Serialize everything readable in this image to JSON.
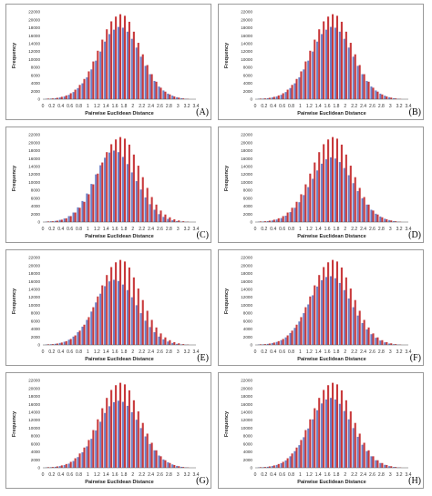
{
  "chart_data": [
    {
      "panel": "A",
      "type": "bar",
      "xlabel": "Pairwise Euclidean Distance",
      "ylabel": "Frequency",
      "yticks": [
        0,
        2000,
        4000,
        6000,
        8000,
        10000,
        12000,
        14000,
        16000,
        18000,
        20000,
        22000
      ],
      "xticks": [
        "0",
        "0.2",
        "0.4",
        "0.6",
        "0.8",
        "1",
        "1.2",
        "1.4",
        "1.6",
        "1.8",
        "2",
        "2.2",
        "2.4",
        "2.6",
        "2.8",
        "3",
        "3.2",
        "3.4"
      ],
      "ylim": [
        0,
        22000
      ],
      "xlim": [
        0,
        3.4
      ],
      "bin_width": 0.1,
      "x": [
        0.1,
        0.2,
        0.3,
        0.4,
        0.5,
        0.6,
        0.7,
        0.8,
        0.9,
        1.0,
        1.1,
        1.2,
        1.3,
        1.4,
        1.5,
        1.6,
        1.7,
        1.8,
        1.9,
        2.0,
        2.1,
        2.2,
        2.3,
        2.4,
        2.5,
        2.6,
        2.7,
        2.8,
        2.9,
        3.0,
        3.1,
        3.2
      ],
      "series": [
        {
          "values": [
            100,
            150,
            250,
            450,
            700,
            1100,
            1800,
            2800,
            4000,
            5500,
            7500,
            9700,
            12000,
            14500,
            16400,
            17500,
            18200,
            18000,
            17000,
            15200,
            13000,
            10700,
            8400,
            6300,
            4600,
            3200,
            2200,
            1400,
            900,
            500,
            250,
            100
          ]
        },
        {
          "values": [
            150,
            200,
            350,
            600,
            950,
            1500,
            2400,
            3600,
            5100,
            7000,
            9500,
            12200,
            15000,
            17600,
            19600,
            20800,
            21400,
            21000,
            19500,
            17000,
            14200,
            11300,
            8600,
            6300,
            4400,
            2900,
            1900,
            1200,
            700,
            400,
            200,
            80
          ]
        }
      ]
    },
    {
      "panel": "B",
      "type": "bar",
      "xlabel": "Pairwise Euclidean Distance",
      "ylabel": "Frequency",
      "yticks": [
        0,
        2000,
        4000,
        6000,
        8000,
        10000,
        12000,
        14000,
        16000,
        18000,
        20000,
        22000
      ],
      "xticks": [
        "0",
        "0.2",
        "0.4",
        "0.6",
        "0.8",
        "1",
        "1.2",
        "1.4",
        "1.6",
        "1.8",
        "2",
        "2.2",
        "2.4",
        "2.6",
        "2.8",
        "3",
        "3.2",
        "3.4"
      ],
      "ylim": [
        0,
        22000
      ],
      "xlim": [
        0,
        3.4
      ],
      "bin_width": 0.1,
      "x": [
        0.1,
        0.2,
        0.3,
        0.4,
        0.5,
        0.6,
        0.7,
        0.8,
        0.9,
        1.0,
        1.1,
        1.2,
        1.3,
        1.4,
        1.5,
        1.6,
        1.7,
        1.8,
        1.9,
        2.0,
        2.1,
        2.2,
        2.3,
        2.4,
        2.5,
        2.6,
        2.7,
        2.8,
        2.9,
        3.0,
        3.1,
        3.2
      ],
      "series": [
        {
          "values": [
            100,
            150,
            250,
            450,
            700,
            1100,
            1800,
            2800,
            4000,
            5500,
            7500,
            9700,
            12000,
            14500,
            16400,
            17500,
            18200,
            18000,
            17000,
            15200,
            13000,
            10700,
            8400,
            6300,
            4600,
            3200,
            2200,
            1400,
            900,
            500,
            250,
            100
          ]
        },
        {
          "values": [
            150,
            200,
            350,
            600,
            950,
            1500,
            2400,
            3600,
            5100,
            7000,
            9500,
            12200,
            15000,
            17600,
            19600,
            20800,
            21400,
            21000,
            19500,
            17000,
            14200,
            11300,
            8600,
            6300,
            4400,
            2900,
            1900,
            1200,
            700,
            400,
            200,
            80
          ]
        }
      ]
    },
    {
      "panel": "C",
      "type": "bar",
      "xlabel": "Pairwise Euclidean Distance",
      "ylabel": "Frequency",
      "yticks": [
        0,
        2000,
        4000,
        6000,
        8000,
        10000,
        12000,
        14000,
        16000,
        18000,
        20000,
        22000
      ],
      "xticks": [
        "0",
        "0.2",
        "0.4",
        "0.6",
        "0.8",
        "1",
        "1.2",
        "1.4",
        "1.6",
        "1.8",
        "2",
        "2.2",
        "2.4",
        "2.6",
        "2.8",
        "3",
        "3.2",
        "3.4"
      ],
      "ylim": [
        0,
        22000
      ],
      "xlim": [
        0,
        3.4
      ],
      "bin_width": 0.1,
      "x": [
        0.1,
        0.2,
        0.3,
        0.4,
        0.5,
        0.6,
        0.7,
        0.8,
        0.9,
        1.0,
        1.1,
        1.2,
        1.3,
        1.4,
        1.5,
        1.6,
        1.7,
        1.8,
        1.9,
        2.0,
        2.1,
        2.2,
        2.3,
        2.4,
        2.5,
        2.6,
        2.7,
        2.8,
        2.9,
        3.0,
        3.1,
        3.2
      ],
      "series": [
        {
          "values": [
            100,
            180,
            300,
            550,
            900,
            1500,
            2400,
            3700,
            5300,
            7200,
            9600,
            12000,
            14300,
            16200,
            17500,
            18000,
            17600,
            16400,
            14600,
            12500,
            10300,
            8200,
            6200,
            4500,
            3100,
            2000,
            1300,
            800,
            450,
            250,
            120,
            60
          ]
        },
        {
          "values": [
            150,
            200,
            350,
            600,
            950,
            1500,
            2400,
            3600,
            5100,
            7000,
            9500,
            12200,
            15000,
            17600,
            19600,
            20800,
            21400,
            21000,
            19500,
            17000,
            14200,
            11300,
            8600,
            6300,
            4400,
            2900,
            1900,
            1200,
            700,
            400,
            200,
            80
          ]
        }
      ]
    },
    {
      "panel": "D",
      "type": "bar",
      "xlabel": "Pairwise Euclidean Distance",
      "ylabel": "Frequency",
      "yticks": [
        0,
        2000,
        4000,
        6000,
        8000,
        10000,
        12000,
        14000,
        16000,
        18000,
        20000,
        22000
      ],
      "xticks": [
        "0",
        "0.2",
        "0.4",
        "0.6",
        "0.8",
        "1",
        "1.2",
        "1.4",
        "1.6",
        "1.8",
        "2",
        "2.2",
        "2.4",
        "2.6",
        "2.8",
        "3",
        "3.2",
        "3.4"
      ],
      "ylim": [
        0,
        22000
      ],
      "xlim": [
        0,
        3.4
      ],
      "bin_width": 0.1,
      "x": [
        0.1,
        0.2,
        0.3,
        0.4,
        0.5,
        0.6,
        0.7,
        0.8,
        0.9,
        1.0,
        1.1,
        1.2,
        1.3,
        1.4,
        1.5,
        1.6,
        1.7,
        1.8,
        1.9,
        2.0,
        2.1,
        2.2,
        2.3,
        2.4,
        2.5,
        2.6,
        2.7,
        2.8,
        2.9,
        3.0,
        3.1,
        3.2
      ],
      "series": [
        {
          "values": [
            80,
            130,
            220,
            400,
            650,
            1000,
            1600,
            2500,
            3600,
            5000,
            6800,
            8800,
            10900,
            13000,
            14700,
            15800,
            16300,
            16000,
            15100,
            13600,
            11800,
            9800,
            7800,
            6000,
            4400,
            3100,
            2100,
            1400,
            850,
            500,
            250,
            100
          ]
        },
        {
          "values": [
            150,
            200,
            350,
            600,
            950,
            1500,
            2400,
            3600,
            5100,
            7000,
            9500,
            12200,
            15000,
            17600,
            19600,
            20800,
            21400,
            21000,
            19500,
            17000,
            14200,
            11300,
            8600,
            6300,
            4400,
            2900,
            1900,
            1200,
            700,
            400,
            200,
            80
          ]
        }
      ]
    },
    {
      "panel": "E",
      "type": "bar",
      "xlabel": "Pairwise Euclidean Distance",
      "ylabel": "Frequency",
      "yticks": [
        0,
        2000,
        4000,
        6000,
        8000,
        10000,
        12000,
        14000,
        16000,
        18000,
        20000,
        22000
      ],
      "xticks": [
        "0",
        "0.2",
        "0.4",
        "0.6",
        "0.8",
        "1",
        "1.2",
        "1.4",
        "1.6",
        "1.8",
        "2",
        "2.2",
        "2.4",
        "2.6",
        "2.8",
        "3",
        "3.2",
        "3.4"
      ],
      "ylim": [
        0,
        22000
      ],
      "xlim": [
        0,
        3.4
      ],
      "bin_width": 0.1,
      "x": [
        0.1,
        0.2,
        0.3,
        0.4,
        0.5,
        0.6,
        0.7,
        0.8,
        0.9,
        1.0,
        1.1,
        1.2,
        1.3,
        1.4,
        1.5,
        1.6,
        1.7,
        1.8,
        1.9,
        2.0,
        2.1,
        2.2,
        2.3,
        2.4,
        2.5,
        2.6,
        2.7,
        2.8,
        2.9,
        3.0,
        3.1,
        3.2
      ],
      "series": [
        {
          "values": [
            100,
            160,
            280,
            500,
            800,
            1300,
            2100,
            3200,
            4600,
            6300,
            8400,
            10700,
            12900,
            14800,
            16000,
            16400,
            16100,
            15200,
            13800,
            12000,
            10000,
            8000,
            6100,
            4500,
            3200,
            2100,
            1400,
            850,
            500,
            270,
            130,
            60
          ]
        },
        {
          "values": [
            150,
            200,
            350,
            600,
            950,
            1500,
            2400,
            3600,
            5100,
            7000,
            9500,
            12200,
            15000,
            17600,
            19600,
            20800,
            21400,
            21000,
            19500,
            17000,
            14200,
            11300,
            8600,
            6300,
            4400,
            2900,
            1900,
            1200,
            700,
            400,
            200,
            80
          ]
        }
      ]
    },
    {
      "panel": "F",
      "type": "bar",
      "xlabel": "Pairwise Euclidean Distance",
      "ylabel": "Frequency",
      "yticks": [
        0,
        2000,
        4000,
        6000,
        8000,
        10000,
        12000,
        14000,
        16000,
        18000,
        20000,
        22000
      ],
      "xticks": [
        "0",
        "0.2",
        "0.4",
        "0.6",
        "0.8",
        "1",
        "1.2",
        "1.4",
        "1.6",
        "1.8",
        "2",
        "2.2",
        "2.4",
        "2.6",
        "2.8",
        "3",
        "3.2",
        "3.4"
      ],
      "ylim": [
        0,
        22000
      ],
      "xlim": [
        0,
        3.4
      ],
      "bin_width": 0.1,
      "x": [
        0.1,
        0.2,
        0.3,
        0.4,
        0.5,
        0.6,
        0.7,
        0.8,
        0.9,
        1.0,
        1.1,
        1.2,
        1.3,
        1.4,
        1.5,
        1.6,
        1.7,
        1.8,
        1.9,
        2.0,
        2.1,
        2.2,
        2.3,
        2.4,
        2.5,
        2.6,
        2.7,
        2.8,
        2.9,
        3.0,
        3.1,
        3.2
      ],
      "series": [
        {
          "values": [
            100,
            150,
            260,
            470,
            750,
            1200,
            1900,
            3000,
            4300,
            5900,
            8000,
            10200,
            12500,
            14700,
            16300,
            17100,
            17300,
            16800,
            15600,
            13800,
            11700,
            9500,
            7400,
            5500,
            3900,
            2700,
            1800,
            1100,
            650,
            350,
            180,
            80
          ]
        },
        {
          "values": [
            150,
            200,
            350,
            600,
            950,
            1500,
            2400,
            3600,
            5100,
            7000,
            9500,
            12200,
            15000,
            17600,
            19600,
            20800,
            21400,
            21000,
            19500,
            17000,
            14200,
            11300,
            8600,
            6300,
            4400,
            2900,
            1900,
            1200,
            700,
            400,
            200,
            80
          ]
        }
      ]
    },
    {
      "panel": "G",
      "type": "bar",
      "xlabel": "Pairwise Euclidean Distance",
      "ylabel": "Frequency",
      "yticks": [
        0,
        2000,
        4000,
        6000,
        8000,
        10000,
        12000,
        14000,
        16000,
        18000,
        20000,
        22000
      ],
      "xticks": [
        "0",
        "0.2",
        "0.4",
        "0.6",
        "0.8",
        "1",
        "1.2",
        "1.4",
        "1.6",
        "1.8",
        "2",
        "2.2",
        "2.4",
        "2.6",
        "2.8",
        "3",
        "3.2",
        "3.4"
      ],
      "ylim": [
        0,
        22000
      ],
      "xlim": [
        0,
        3.4
      ],
      "bin_width": 0.1,
      "x": [
        0.1,
        0.2,
        0.3,
        0.4,
        0.5,
        0.6,
        0.7,
        0.8,
        0.9,
        1.0,
        1.1,
        1.2,
        1.3,
        1.4,
        1.5,
        1.6,
        1.7,
        1.8,
        1.9,
        2.0,
        2.1,
        2.2,
        2.3,
        2.4,
        2.5,
        2.6,
        2.7,
        2.8,
        2.9,
        3.0,
        3.1,
        3.2
      ],
      "series": [
        {
          "values": [
            90,
            140,
            240,
            430,
            680,
            1050,
            1700,
            2700,
            3900,
            5400,
            7300,
            9400,
            11600,
            13800,
            15500,
            16500,
            16900,
            16600,
            15600,
            14000,
            12100,
            10000,
            7900,
            6000,
            4400,
            3100,
            2100,
            1400,
            850,
            480,
            240,
            100
          ]
        },
        {
          "values": [
            150,
            200,
            350,
            600,
            950,
            1500,
            2400,
            3600,
            5100,
            7000,
            9500,
            12200,
            15000,
            17600,
            19600,
            20800,
            21400,
            21000,
            19500,
            17000,
            14200,
            11300,
            8600,
            6300,
            4400,
            2900,
            1900,
            1200,
            700,
            400,
            200,
            80
          ]
        }
      ]
    },
    {
      "panel": "H",
      "type": "bar",
      "xlabel": "Pairwise Euclidean Distance",
      "ylabel": "Frequency",
      "yticks": [
        0,
        2000,
        4000,
        6000,
        8000,
        10000,
        12000,
        14000,
        16000,
        18000,
        20000,
        22000
      ],
      "xticks": [
        "0",
        "0.2",
        "0.4",
        "0.6",
        "0.8",
        "1",
        "1.2",
        "1.4",
        "1.6",
        "1.8",
        "2",
        "2.2",
        "2.4",
        "2.6",
        "2.8",
        "3",
        "3.2",
        "3.4"
      ],
      "ylim": [
        0,
        22000
      ],
      "xlim": [
        0,
        3.4
      ],
      "bin_width": 0.1,
      "x": [
        0.1,
        0.2,
        0.3,
        0.4,
        0.5,
        0.6,
        0.7,
        0.8,
        0.9,
        1.0,
        1.1,
        1.2,
        1.3,
        1.4,
        1.5,
        1.6,
        1.7,
        1.8,
        1.9,
        2.0,
        2.1,
        2.2,
        2.3,
        2.4,
        2.5,
        2.6,
        2.7,
        2.8,
        2.9,
        3.0,
        3.1,
        3.2
      ],
      "series": [
        {
          "values": [
            100,
            150,
            250,
            450,
            720,
            1150,
            1850,
            2900,
            4200,
            5700,
            7700,
            9900,
            12200,
            14500,
            16200,
            17200,
            17600,
            17200,
            16100,
            14300,
            12200,
            10000,
            7800,
            5800,
            4200,
            2900,
            1900,
            1200,
            750,
            420,
            210,
            90
          ]
        },
        {
          "values": [
            150,
            200,
            350,
            600,
            950,
            1500,
            2400,
            3600,
            5100,
            7000,
            9500,
            12200,
            15000,
            17600,
            19600,
            20800,
            21400,
            21000,
            19500,
            17000,
            14200,
            11300,
            8600,
            6300,
            4400,
            2900,
            1900,
            1200,
            700,
            400,
            200,
            80
          ]
        }
      ]
    }
  ],
  "panel_labels": [
    "(A)",
    "(B)",
    "(C)",
    "(D)",
    "(E)",
    "(F)",
    "(G)",
    "(H)"
  ],
  "colors": {
    "series_1": "#6a7fc7",
    "series_2": "#c8383a",
    "axis": "#555555",
    "frame": "#9a9a9a"
  }
}
